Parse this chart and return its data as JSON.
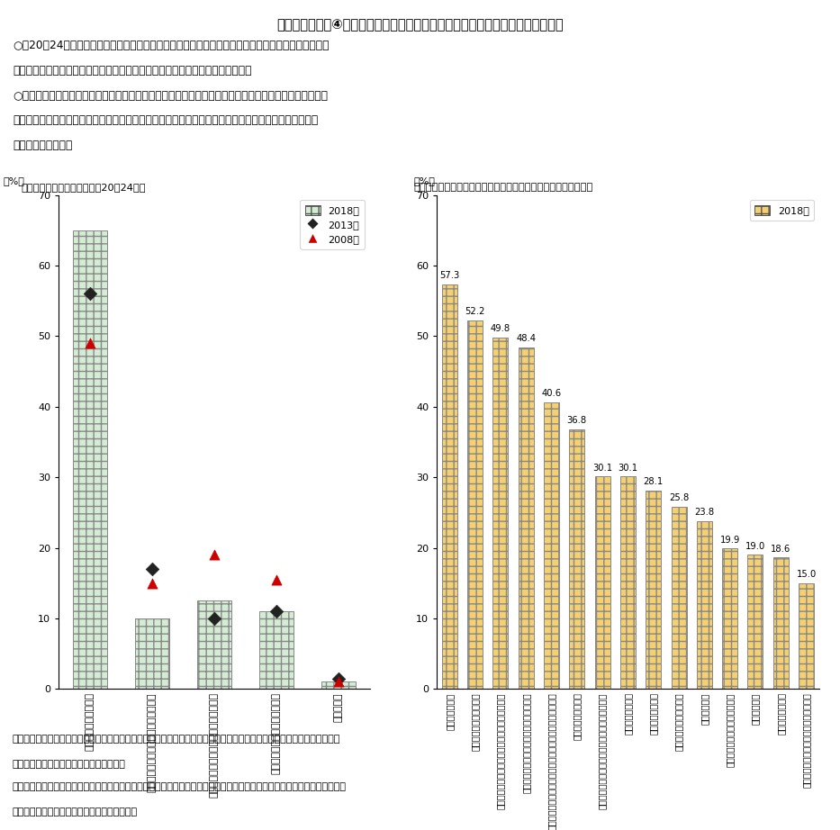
{
  "title": "コラム１－２－④図　働く目的及び就職先を決めるに当たって重視していること",
  "subtitle_lines": [
    "○　20～24歳の働く目的についてみると、「お金を得るために働く」者の割合が経年的に増加してい",
    "　る一方で、「生きがいをみつけるために働く」者の割合は、減少傾向にある。",
    "○　また、就職先を決めるに当たって重視していることについてみると、「企業等の安定性」「職場の雰",
    "　囲気が良さそう」に次いで、「自分のやりたい仕事ができる（やりがいがある）」を重視する割合も",
    "　高くなっている。"
  ],
  "left_chart": {
    "title": "（１）働く目的（単数回答、20～24歳）",
    "ylabel": "（%）",
    "ylim": [
      0,
      70
    ],
    "yticks": [
      0,
      10,
      20,
      30,
      40,
      50,
      60,
      70
    ],
    "categories": [
      "お金を得るために働く",
      "社会の一員の務めを果たすために働く",
      "自分の才能や能力を発揮するために働く",
      "生きがいをみつけるために働く",
      "わからない"
    ],
    "bar_2018": [
      65.0,
      10.0,
      12.5,
      11.0,
      1.0
    ],
    "dot_2013": [
      56.0,
      17.0,
      10.0,
      11.0,
      1.5
    ],
    "dot_2008": [
      49.0,
      15.0,
      19.0,
      15.5,
      1.0
    ],
    "bar_color": "#d4ecd4",
    "bar_edgecolor": "#888888",
    "bar_hatch": "++",
    "dot_2013_color": "#222222",
    "dot_2013_marker": "D",
    "dot_2008_color": "#cc0000",
    "dot_2008_marker": "^",
    "legend_labels": [
      "2018年",
      "2013年",
      "2008年"
    ]
  },
  "right_chart": {
    "title": "（２）就職先を決めるに当たって重視していること（複数回答）",
    "ylabel": "（%）",
    "ylim": [
      0,
      70
    ],
    "yticks": [
      0,
      10,
      20,
      30,
      40,
      50,
      60,
      70
    ],
    "categories": [
      "企業等の安定性",
      "職場の雰囲気が良さそう",
      "自分のやりたい仕事ができる（やりがいがある）",
      "給与や賞与が高い／手当や社会保障が充実",
      "残業が少なく、休暇が取れるなどのワークライフバランス",
      "正社員として働ける",
      "自分の能力を高めキャリアアップにつなげられる",
      "企業の成長可能性",
      "社会貢献度が高い",
      "希望する勤務地で働ける",
      "知名度が高い",
      "自分の能力や専門性を生かせる",
      "地元で働ける",
      "女性が活躍できる",
      "育児休業や保育所などの両立支援の充実"
    ],
    "values": [
      57.3,
      52.2,
      49.8,
      48.4,
      40.6,
      36.8,
      30.1,
      30.1,
      28.1,
      25.8,
      23.8,
      19.9,
      19.0,
      18.6,
      15.0
    ],
    "bar_color": "#f5d070",
    "bar_edgecolor": "#888888",
    "bar_hatch": "++",
    "legend_label": "2018年"
  },
  "footer_lines": [
    "資料出所　内閣府「国民生活に関する世論調査」「学生の就職・採用活動開始時期等に関する調査」をもとに厚生労働省政",
    "　　　　　策統括官付政策統括室にて作成",
    "（注）　右図は、「就職活動を行った（終えた）」「就職活動を行っている（継続している）」「これから就職活動を行う予",
    "　　　定である」大学４年生を対象とした値。"
  ],
  "background_color": "#ffffff"
}
